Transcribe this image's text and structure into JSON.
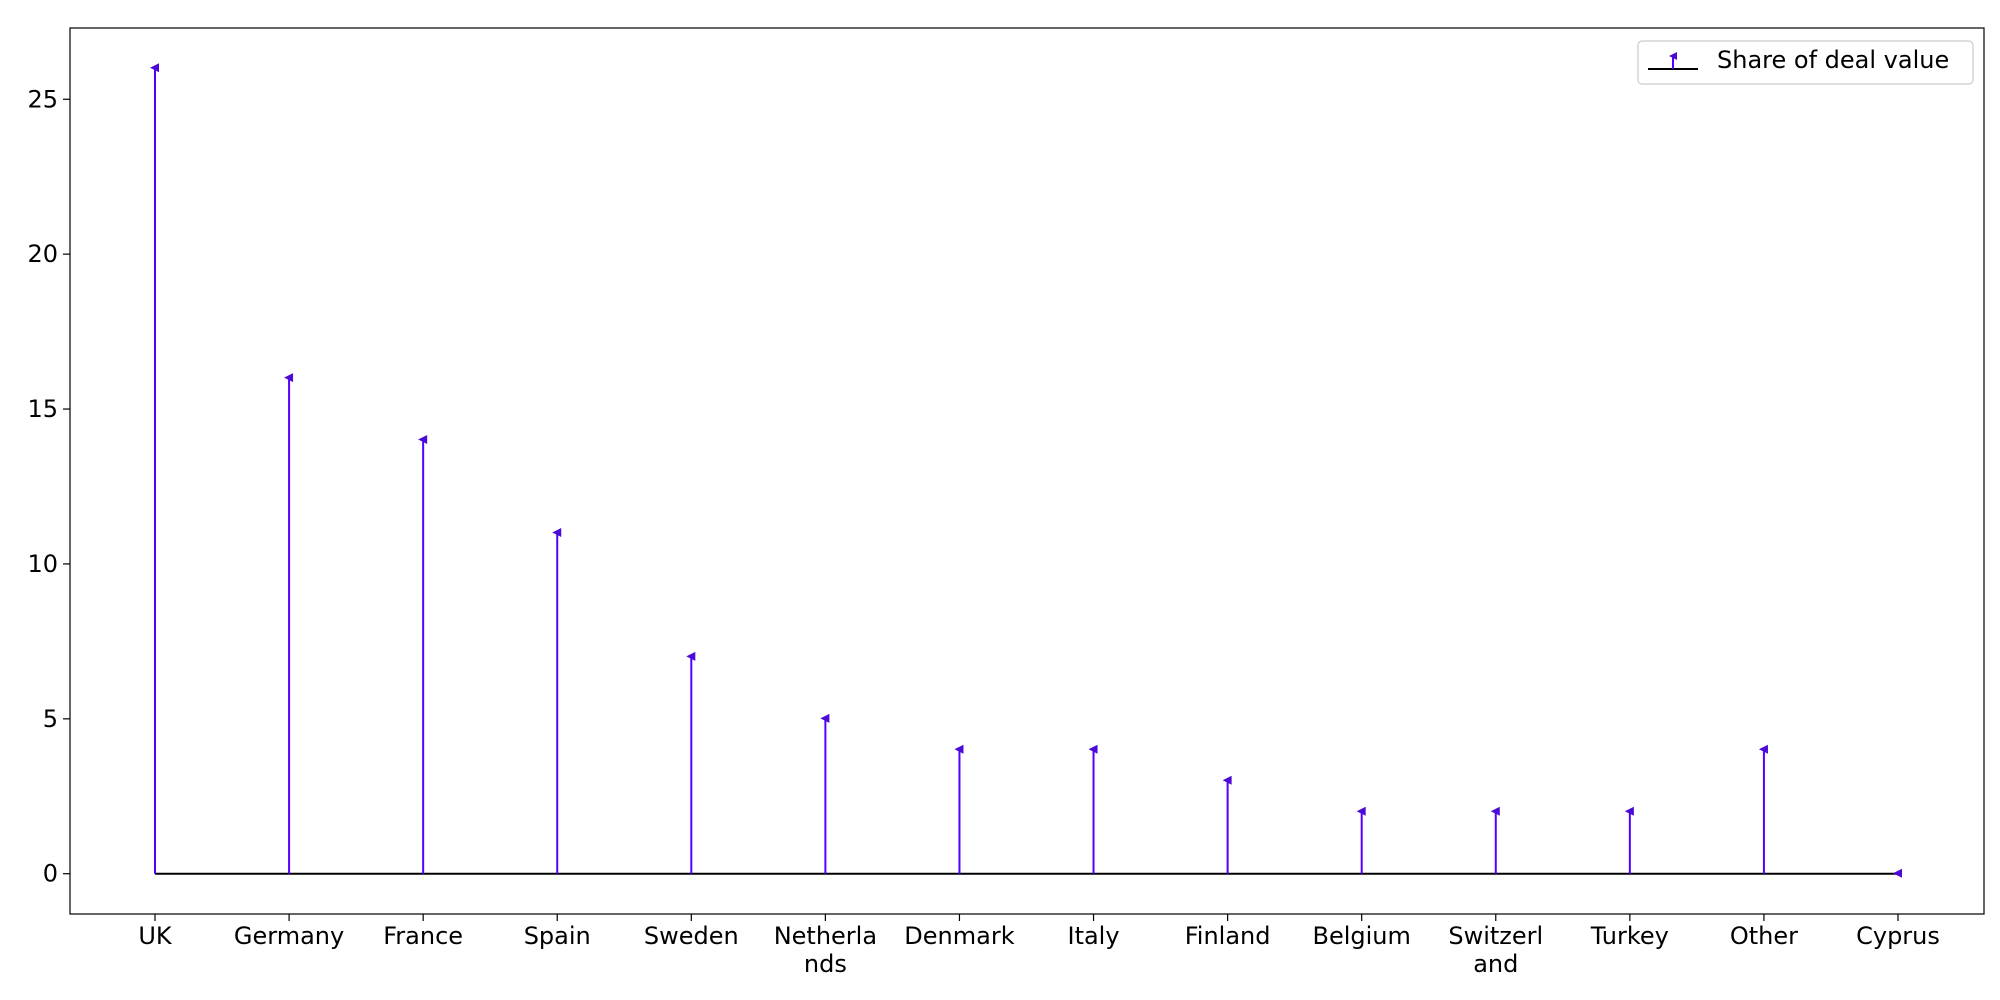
{
  "chart_data": {
    "type": "stem",
    "categories": [
      "UK",
      "Germany",
      "France",
      "Spain",
      "Sweden",
      "Netherlands",
      "Denmark",
      "Italy",
      "Finland",
      "Belgium",
      "Switzerland",
      "Turkey",
      "Other",
      "Cyprus"
    ],
    "category_display_lines": [
      [
        "UK"
      ],
      [
        "Germany"
      ],
      [
        "France"
      ],
      [
        "Spain"
      ],
      [
        "Sweden"
      ],
      [
        "Netherla",
        "nds"
      ],
      [
        "Denmark"
      ],
      [
        "Italy"
      ],
      [
        "Finland"
      ],
      [
        "Belgium"
      ],
      [
        "Switzerl",
        "and"
      ],
      [
        "Turkey"
      ],
      [
        "Other"
      ],
      [
        "Cyprus"
      ]
    ],
    "series": [
      {
        "name": "Share of deal value",
        "values": [
          26,
          16,
          14,
          11,
          7,
          5,
          4,
          4,
          3,
          2,
          2,
          2,
          4,
          0
        ]
      }
    ],
    "ylim": [
      -1.3,
      27.3
    ],
    "yticks": [
      0,
      5,
      10,
      15,
      20,
      25
    ],
    "title": "",
    "xlabel": "",
    "ylabel": "",
    "legend_position": "top-right",
    "colors": {
      "stem": "#5500ff",
      "marker": "#4b0ad6",
      "baseline": "#000000",
      "axes": "#000000"
    }
  }
}
